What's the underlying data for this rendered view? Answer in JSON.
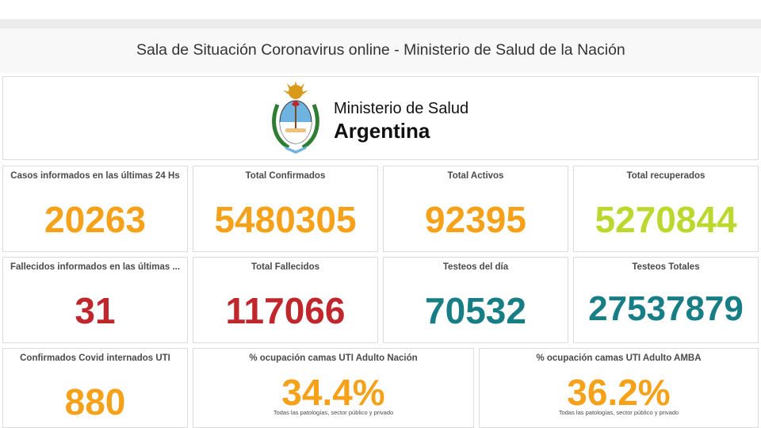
{
  "header": {
    "title": "Sala de Situación Coronavirus online - Ministerio de Salud de la Nación"
  },
  "org": {
    "line1": "Ministerio de Salud",
    "line2": "Argentina",
    "emblem_icon": "argentina-coat-of-arms-icon"
  },
  "colors": {
    "orange": "#f5a21a",
    "lime": "#bcd82e",
    "red": "#c0272d",
    "teal": "#167e84"
  },
  "stats": {
    "casos24": {
      "title": "Casos informados en las últimas 24 Hs",
      "value": "20263"
    },
    "confirmados": {
      "title": "Total Confirmados",
      "value": "5480305"
    },
    "activos": {
      "title": "Total Activos",
      "value": "92395"
    },
    "recuperados": {
      "title": "Total recuperados",
      "value": "5270844"
    },
    "fallecidos24": {
      "title": "Fallecidos informados en las últimas ...",
      "value": "31"
    },
    "fallecidos": {
      "title": "Total Fallecidos",
      "value": "117066"
    },
    "testeosDia": {
      "title": "Testeos del día",
      "value": "70532"
    },
    "testeosTotales": {
      "title": "Testeos Totales",
      "value": "27537879"
    },
    "uti": {
      "title": "Confirmados Covid internados UTI",
      "value": "880"
    },
    "camasNacion": {
      "title": "% ocupación camas UTI Adulto Nación",
      "value": "34.4%",
      "note": "Todas las patologías, sector público y privado"
    },
    "camasAmba": {
      "title": "% ocupación camas UTI Adulto AMBA",
      "value": "36.2%",
      "note": "Todas las patologías, sector público y privado"
    }
  }
}
